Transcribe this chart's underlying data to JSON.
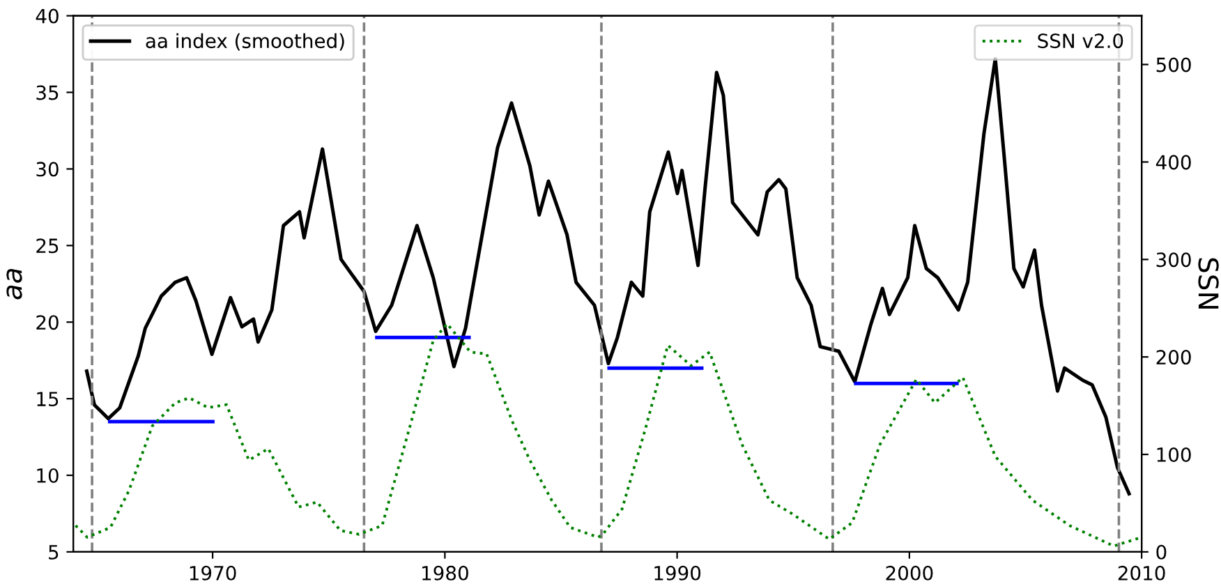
{
  "chart_data": {
    "type": "line",
    "ylabel": "aa",
    "y2label": "SSN",
    "xlim": [
      1964,
      2010
    ],
    "xticks": [
      1970,
      1980,
      1990,
      2000,
      2010
    ],
    "ylim": [
      5,
      40
    ],
    "yticks": [
      5,
      10,
      15,
      20,
      25,
      30,
      35,
      40
    ],
    "y2lim": [
      0,
      550
    ],
    "y2ticks": [
      0,
      100,
      200,
      300,
      400,
      500
    ],
    "grid": false,
    "legend": "top left",
    "series": [
      {
        "name": "aa index (smoothed)",
        "color": "#000000",
        "line_style": "solid",
        "x": [
          1964.58,
          1964.91,
          1965.51,
          1966.0,
          1966.8,
          1967.1,
          1967.79,
          1968.39,
          1968.88,
          1969.28,
          1969.97,
          1970.77,
          1971.26,
          1971.76,
          1971.96,
          1972.55,
          1973.05,
          1973.74,
          1973.94,
          1974.73,
          1975.53,
          1976.52,
          1977.02,
          1977.71,
          1978.8,
          1979.5,
          1980.39,
          1980.89,
          1981.78,
          1982.27,
          1982.87,
          1983.66,
          1984.06,
          1984.46,
          1985.26,
          1985.65,
          1986.44,
          1987.04,
          1987.43,
          1988.03,
          1988.52,
          1988.82,
          1989.62,
          1990.01,
          1990.21,
          1990.9,
          1991.2,
          1991.7,
          1991.99,
          1992.39,
          1993.48,
          1993.88,
          1994.38,
          1994.68,
          1995.17,
          1995.77,
          1996.16,
          1996.96,
          1997.65,
          1998.35,
          1998.84,
          1999.14,
          1999.93,
          2000.23,
          2000.73,
          2001.22,
          2002.11,
          2002.51,
          2003.21,
          2003.7,
          2004.1,
          2004.5,
          2004.9,
          2005.39,
          2005.69,
          2006.38,
          2006.68,
          2007.47,
          2007.87,
          2008.46,
          2008.96,
          2009.46
        ],
        "values": [
          16.8,
          14.6,
          13.7,
          14.4,
          17.8,
          19.6,
          21.7,
          22.6,
          22.9,
          21.4,
          17.9,
          21.6,
          19.7,
          20.2,
          18.7,
          20.8,
          26.3,
          27.2,
          25.5,
          31.3,
          24.1,
          22.0,
          19.4,
          21.1,
          26.3,
          22.9,
          17.1,
          19.6,
          27.2,
          31.4,
          34.3,
          30.2,
          27.0,
          29.2,
          25.7,
          22.6,
          21.1,
          17.3,
          19.0,
          22.6,
          21.7,
          27.2,
          31.1,
          28.4,
          29.9,
          23.7,
          28.7,
          36.3,
          34.8,
          27.8,
          25.7,
          28.5,
          29.3,
          28.7,
          22.9,
          21.1,
          18.4,
          18.1,
          16.1,
          19.9,
          22.2,
          20.5,
          22.9,
          26.3,
          23.5,
          22.9,
          20.8,
          22.6,
          32.3,
          37.2,
          30.5,
          23.5,
          22.3,
          24.7,
          21.1,
          15.5,
          17.0,
          16.2,
          15.9,
          13.8,
          10.5,
          8.8
        ]
      },
      {
        "color": "#0000ff",
        "line_style": "solid",
        "x": [
          1965.57,
          1970.01
        ],
        "values": [
          13.5,
          13.5
        ]
      },
      {
        "color": "#0000ff",
        "line_style": "solid",
        "x": [
          1977.07,
          1981.04
        ],
        "values": [
          19.0,
          19.0
        ]
      },
      {
        "color": "#0000ff",
        "line_style": "solid",
        "x": [
          1987.07,
          1991.06
        ],
        "values": [
          17.0,
          17.0
        ]
      },
      {
        "color": "#0000ff",
        "line_style": "solid",
        "x": [
          1997.69,
          2002.05
        ],
        "values": [
          16.0,
          16.0
        ]
      },
      {
        "name": "SSN v2.0",
        "color": "#008000",
        "axis": "y2",
        "line_style": "dotted",
        "x": [
          1964.1,
          1964.6,
          1965.6,
          1966.4,
          1967.4,
          1968.4,
          1969.0,
          1969.8,
          1970.6,
          1971.56,
          1972.4,
          1973.7,
          1974.5,
          1975.5,
          1976.3,
          1977.3,
          1978.5,
          1979.5,
          1980.1,
          1981.1,
          1981.8,
          1982.9,
          1983.66,
          1984.6,
          1985.4,
          1986.6,
          1986.8,
          1987.63,
          1988.62,
          1989.6,
          1990.6,
          1991.4,
          1992.8,
          1993.97,
          1994.96,
          1996.55,
          1997.54,
          1998.73,
          2000.3,
          2001.1,
          2002.3,
          2003.7,
          2005.3,
          2006.9,
          2008.8,
          2010.0
        ],
        "values": [
          27,
          15,
          25,
          63,
          129,
          153,
          158,
          148,
          151,
          94,
          106,
          46,
          51,
          22,
          18,
          27,
          129,
          217,
          234,
          205,
          203,
          134,
          94,
          53,
          25,
          15,
          18,
          44,
          125,
          212,
          191,
          205,
          110,
          53,
          39,
          13,
          30,
          110,
          177,
          153,
          179,
          98,
          53,
          27,
          6,
          15
        ]
      }
    ],
    "ref_lines": [
      {
        "axis": "x",
        "value": 1964.81,
        "color": "#808080",
        "line_style": "dashed"
      },
      {
        "axis": "x",
        "value": 1976.52,
        "color": "#808080",
        "line_style": "dashed"
      },
      {
        "axis": "x",
        "value": 1986.74,
        "color": "#808080",
        "line_style": "dashed"
      },
      {
        "axis": "x",
        "value": 1996.7,
        "color": "#808080",
        "line_style": "dashed"
      },
      {
        "axis": "x",
        "value": 2009.02,
        "color": "#808080",
        "line_style": "dashed"
      }
    ]
  }
}
